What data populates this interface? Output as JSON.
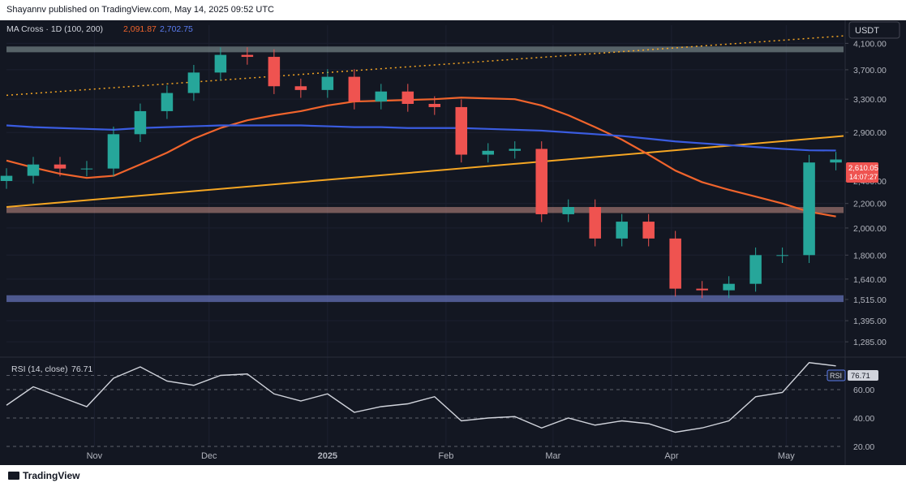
{
  "header": {
    "publish_text": "Shayannv published on TradingView.com, May 14, 2025 09:52 UTC"
  },
  "indicator": {
    "label": "MA Cross · 1D (100, 200)",
    "ma100_value": "2,091.87",
    "ma200_value": "2,702.75"
  },
  "currency": "USDT",
  "last_price": {
    "price": "2,610.05",
    "countdown": "14:07:27"
  },
  "rsi": {
    "label": "RSI (14, close)",
    "value": "76.71",
    "tag": "RSI"
  },
  "footer": {
    "brand": "TradingView"
  },
  "colors": {
    "background": "#131722",
    "up": "#26a69a",
    "down": "#ef5350",
    "ma100": "#f0642c",
    "ma200": "#3a5ce0",
    "trendline": "#f5a623",
    "rsi_line": "#d1d4dc"
  },
  "chart_data": [
    {
      "type": "candlestick",
      "title": "ETH/USDT 1D",
      "y_scale": "log",
      "ylim": [
        1230,
        4400
      ],
      "price_axis_ticks": [
        "4,100.00",
        "3,700.00",
        "3,300.00",
        "2,900.00",
        "2,400.00",
        "2,200.00",
        "2,000.00",
        "1,800.00",
        "1,640.00",
        "1,515.00",
        "1,395.00",
        "1,285.00"
      ],
      "time_axis_labels": [
        "Nov",
        "Dec",
        "2025",
        "Feb",
        "Mar",
        "Apr",
        "May"
      ],
      "x": [
        "2024-10-09",
        "2024-10-16",
        "2024-10-23",
        "2024-10-30",
        "2024-11-06",
        "2024-11-13",
        "2024-11-20",
        "2024-11-27",
        "2024-12-04",
        "2024-12-11",
        "2024-12-18",
        "2024-12-25",
        "2025-01-01",
        "2025-01-08",
        "2025-01-15",
        "2025-01-22",
        "2025-01-29",
        "2025-02-05",
        "2025-02-12",
        "2025-02-19",
        "2025-02-26",
        "2025-03-05",
        "2025-03-12",
        "2025-03-19",
        "2025-03-26",
        "2025-04-02",
        "2025-04-09",
        "2025-04-16",
        "2025-04-23",
        "2025-04-30",
        "2025-05-07",
        "2025-05-14"
      ],
      "close": [
        2450,
        2560,
        2520,
        2520,
        2880,
        3150,
        3380,
        3660,
        3920,
        3890,
        3470,
        3420,
        3600,
        3270,
        3400,
        3240,
        3200,
        2660,
        2700,
        2720,
        2110,
        2170,
        1920,
        2050,
        1920,
        1580,
        1570,
        1610,
        1800,
        1800,
        2580,
        2610
      ],
      "moving_averages": [
        {
          "name": "MA 100",
          "values": [
            2600,
            2530,
            2470,
            2430,
            2450,
            2560,
            2680,
            2830,
            2950,
            3040,
            3100,
            3150,
            3220,
            3270,
            3280,
            3290,
            3300,
            3320,
            3310,
            3300,
            3220,
            3100,
            2960,
            2820,
            2660,
            2500,
            2390,
            2320,
            2260,
            2200,
            2130,
            2092
          ]
        },
        {
          "name": "MA 200",
          "values": [
            2980,
            2960,
            2950,
            2940,
            2930,
            2950,
            2960,
            2970,
            2980,
            2980,
            2980,
            2980,
            2970,
            2960,
            2960,
            2950,
            2950,
            2950,
            2940,
            2930,
            2920,
            2900,
            2880,
            2860,
            2830,
            2800,
            2780,
            2760,
            2740,
            2720,
            2705,
            2703
          ]
        }
      ],
      "trendlines": [
        {
          "name": "ascending support",
          "from": [
            "2024-10-09",
            2170
          ],
          "to": [
            "2025-05-16",
            2860
          ]
        },
        {
          "name": "ascending resistance (dotted)",
          "from": [
            "2024-10-09",
            3350
          ],
          "to": [
            "2025-05-16",
            4220
          ]
        }
      ],
      "zones": [
        {
          "name": "resistance",
          "range": [
            3960,
            4050
          ]
        },
        {
          "name": "support",
          "range": [
            2120,
            2170
          ]
        },
        {
          "name": "support",
          "range": [
            1500,
            1540
          ]
        }
      ]
    },
    {
      "type": "line",
      "title": "RSI (14, close)",
      "ylim": [
        20,
        80
      ],
      "yticks": [
        20,
        40,
        60,
        70
      ],
      "tick_labels": [
        "20.00",
        "40.00",
        "60.00",
        "70.00"
      ],
      "x": [
        "2024-10-09",
        "2024-10-16",
        "2024-10-23",
        "2024-10-30",
        "2024-11-06",
        "2024-11-13",
        "2024-11-20",
        "2024-11-27",
        "2024-12-04",
        "2024-12-11",
        "2024-12-18",
        "2024-12-25",
        "2025-01-01",
        "2025-01-08",
        "2025-01-15",
        "2025-01-22",
        "2025-01-29",
        "2025-02-05",
        "2025-02-12",
        "2025-02-19",
        "2025-02-26",
        "2025-03-05",
        "2025-03-12",
        "2025-03-19",
        "2025-03-26",
        "2025-04-02",
        "2025-04-09",
        "2025-04-16",
        "2025-04-23",
        "2025-04-30",
        "2025-05-07",
        "2025-05-14"
      ],
      "series": [
        {
          "name": "RSI",
          "values": [
            49,
            62,
            55,
            48,
            68,
            76,
            66,
            63,
            70,
            71,
            57,
            52,
            57,
            44,
            48,
            50,
            55,
            38,
            40,
            41,
            33,
            40,
            35,
            38,
            36,
            30,
            33,
            38,
            55,
            58,
            79,
            76.71
          ]
        }
      ]
    }
  ]
}
